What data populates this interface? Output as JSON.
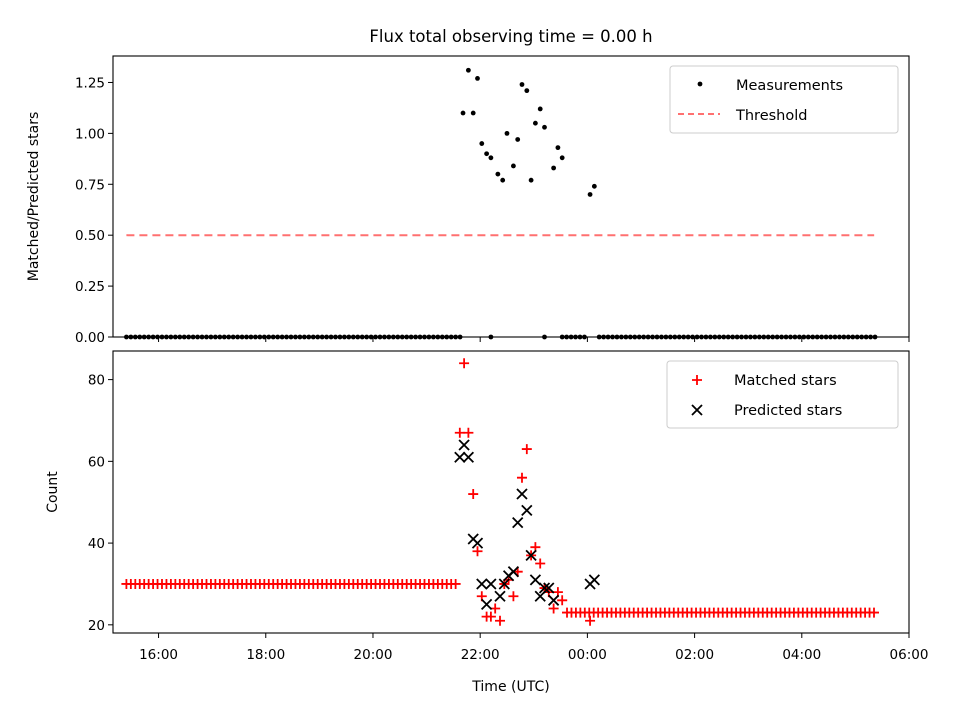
{
  "chart_data": [
    {
      "type": "scatter",
      "title": "Flux total observing time = 0.00 h",
      "xlabel": "",
      "ylabel": "Matched/Predicted stars",
      "xunit": "hours since 00:00 (negative = previous day)",
      "xlim": [
        -8.85,
        6.0
      ],
      "ylim": [
        0.0,
        1.38
      ],
      "yticks": [
        0.0,
        0.25,
        0.5,
        0.75,
        1.0,
        1.25
      ],
      "ytick_labels": [
        "0.00",
        "0.25",
        "0.50",
        "0.75",
        "1.00",
        "1.25"
      ],
      "legend_position": "top-right",
      "threshold": {
        "name": "Threshold",
        "y": 0.5,
        "x_range": [
          -8.6,
          5.35
        ],
        "color": "#ff7070",
        "style": "dashed"
      },
      "series": [
        {
          "name": "Measurements",
          "marker": "dot",
          "color": "#000000",
          "points": [
            [
              -2.32,
              1.1
            ],
            [
              -2.22,
              1.31
            ],
            [
              -2.13,
              1.1
            ],
            [
              -2.05,
              1.27
            ],
            [
              -1.97,
              0.95
            ],
            [
              -1.88,
              0.9
            ],
            [
              -1.8,
              0.88
            ],
            [
              -1.67,
              0.8
            ],
            [
              -1.58,
              0.77
            ],
            [
              -1.5,
              1.0
            ],
            [
              -1.38,
              0.84
            ],
            [
              -1.3,
              0.97
            ],
            [
              -1.22,
              1.24
            ],
            [
              -1.13,
              1.21
            ],
            [
              -1.05,
              0.77
            ],
            [
              -0.97,
              1.05
            ],
            [
              -0.88,
              1.12
            ],
            [
              -0.8,
              1.03
            ],
            [
              -0.63,
              0.83
            ],
            [
              -0.55,
              0.93
            ],
            [
              -0.47,
              0.88
            ],
            [
              0.05,
              0.7
            ],
            [
              0.13,
              0.74
            ]
          ],
          "zero_segments": [
            {
              "from": -8.6,
              "to": -2.38,
              "step": 0.083
            },
            {
              "from": -1.8,
              "to": -1.8,
              "step": 0.083
            },
            {
              "from": -0.8,
              "to": -0.8,
              "step": 0.083
            },
            {
              "from": -0.47,
              "to": -0.05,
              "step": 0.083
            },
            {
              "from": 0.22,
              "to": 5.35,
              "step": 0.083
            }
          ]
        }
      ]
    },
    {
      "type": "scatter",
      "title": "",
      "xlabel": "Time (UTC)",
      "ylabel": "Count",
      "xlim": [
        -8.85,
        6.0
      ],
      "ylim": [
        18.0,
        87.0
      ],
      "yticks": [
        20,
        40,
        60,
        80
      ],
      "ytick_labels": [
        "20",
        "40",
        "60",
        "80"
      ],
      "xticks": [
        -8,
        -6,
        -4,
        -2,
        0,
        2,
        4,
        6
      ],
      "xtick_labels": [
        "16:00",
        "18:00",
        "20:00",
        "22:00",
        "00:00",
        "02:00",
        "04:00",
        "06:00"
      ],
      "legend_position": "top-right",
      "series": [
        {
          "name": "Matched stars",
          "marker": "plus",
          "color": "#ff0000",
          "flat_segments": [
            {
              "from": -8.6,
              "to": -2.48,
              "step": 0.083,
              "y": 30
            },
            {
              "from": -0.38,
              "to": 5.35,
              "step": 0.083,
              "y": 23
            }
          ],
          "points": [
            [
              -2.38,
              67
            ],
            [
              -2.3,
              84
            ],
            [
              -2.22,
              67
            ],
            [
              -2.13,
              52
            ],
            [
              -2.05,
              38
            ],
            [
              -1.97,
              27
            ],
            [
              -1.88,
              22
            ],
            [
              -1.8,
              22
            ],
            [
              -1.72,
              24
            ],
            [
              -1.63,
              21
            ],
            [
              -1.55,
              30
            ],
            [
              -1.47,
              31
            ],
            [
              -1.38,
              27
            ],
            [
              -1.3,
              33
            ],
            [
              -1.22,
              56
            ],
            [
              -1.13,
              63
            ],
            [
              -1.05,
              37
            ],
            [
              -0.97,
              39
            ],
            [
              -0.88,
              35
            ],
            [
              -0.8,
              29
            ],
            [
              -0.72,
              28
            ],
            [
              -0.63,
              24
            ],
            [
              -0.55,
              28
            ],
            [
              -0.47,
              26
            ],
            [
              0.05,
              21
            ]
          ]
        },
        {
          "name": "Predicted stars",
          "marker": "x",
          "color": "#000000",
          "points": [
            [
              -2.38,
              61
            ],
            [
              -2.3,
              64
            ],
            [
              -2.22,
              61
            ],
            [
              -2.13,
              41
            ],
            [
              -2.05,
              40
            ],
            [
              -1.97,
              30
            ],
            [
              -1.88,
              25
            ],
            [
              -1.8,
              30
            ],
            [
              -1.63,
              27
            ],
            [
              -1.55,
              30
            ],
            [
              -1.47,
              32
            ],
            [
              -1.38,
              33
            ],
            [
              -1.3,
              45
            ],
            [
              -1.22,
              52
            ],
            [
              -1.13,
              48
            ],
            [
              -1.05,
              37
            ],
            [
              -0.97,
              31
            ],
            [
              -0.88,
              27
            ],
            [
              -0.8,
              29
            ],
            [
              -0.72,
              29
            ],
            [
              -0.63,
              26
            ],
            [
              0.05,
              30
            ],
            [
              0.13,
              31
            ]
          ]
        }
      ]
    }
  ]
}
